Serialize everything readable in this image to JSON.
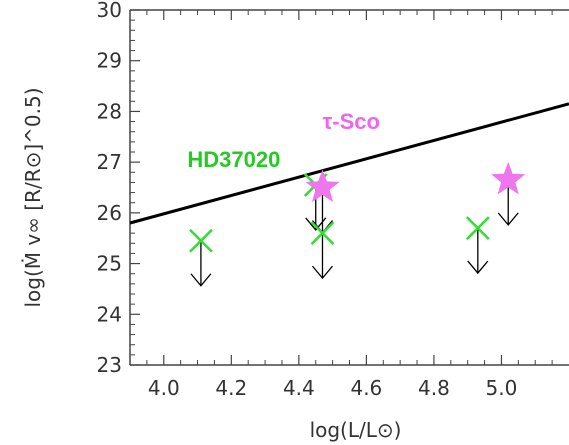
{
  "chart_data": {
    "type": "scatter",
    "xlabel": "log(L/L⊙)",
    "ylabel": "log(Ṁ v∞ [R/R⊙]^0.5)",
    "xlim": [
      3.9,
      5.2
    ],
    "ylim": [
      23,
      30
    ],
    "xticks": [
      4.0,
      4.2,
      4.4,
      4.6,
      4.8,
      5.0
    ],
    "xtick_labels": [
      "4.0",
      "4.2",
      "4.4",
      "4.6",
      "4.8",
      "5.0"
    ],
    "yticks": [
      23,
      24,
      25,
      26,
      27,
      28,
      29,
      30
    ],
    "ytick_labels": [
      "23",
      "24",
      "25",
      "26",
      "27",
      "28",
      "29",
      "30"
    ],
    "grid": false,
    "line": {
      "x": [
        3.9,
        5.2
      ],
      "y": [
        25.8,
        28.15
      ],
      "color": "#000000"
    },
    "series": [
      {
        "marker": "x",
        "color": "#33dd33",
        "points": [
          {
            "x": 4.11,
            "y": 25.45,
            "upper_limit": true
          },
          {
            "x": 4.45,
            "y": 26.55,
            "upper_limit": true
          },
          {
            "x": 4.47,
            "y": 25.6,
            "upper_limit": true
          },
          {
            "x": 4.93,
            "y": 25.7,
            "upper_limit": true
          }
        ]
      },
      {
        "marker": "star",
        "color": "#ee77ee",
        "points": [
          {
            "x": 4.47,
            "y": 26.5,
            "upper_limit": true
          },
          {
            "x": 5.02,
            "y": 26.65,
            "upper_limit": true
          }
        ]
      }
    ],
    "annotations": [
      {
        "text": "HD37020",
        "x": 4.07,
        "y": 26.9,
        "color": "#22cc22"
      },
      {
        "text": "τ-Sco",
        "x": 4.47,
        "y": 27.65,
        "color": "#ee66ee"
      }
    ]
  }
}
